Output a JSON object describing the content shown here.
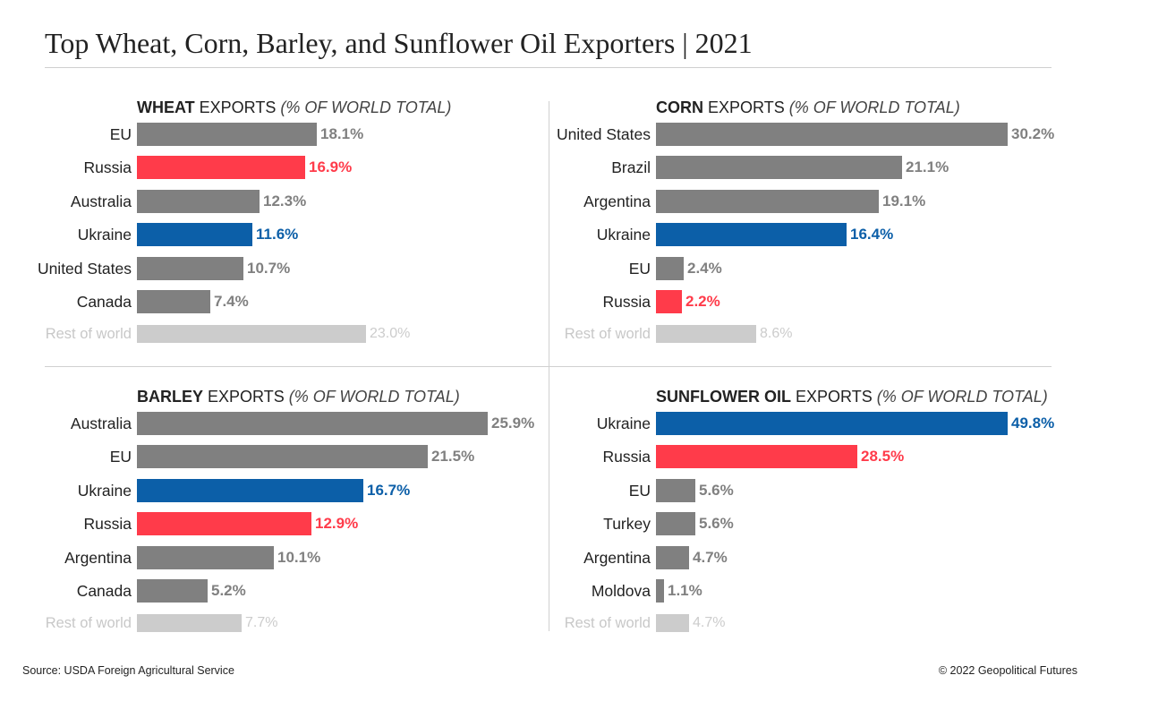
{
  "title": "Top Wheat, Corn, Barley, and Sunflower Oil Exporters | 2021",
  "source": "Source: USDA Foreign Agricultural Service",
  "copyright": "© 2022 Geopolitical Futures",
  "colors": {
    "default": "#808080",
    "russia": "#ff3b4a",
    "ukraine": "#0c5fa8",
    "rest": "#cccccc",
    "default_text": "#808080"
  },
  "chart_data": [
    {
      "type": "bar",
      "orientation": "horizontal",
      "title_bold": "WHEAT",
      "title_rest": " EXPORTS ",
      "title_unit": "(% OF WORLD TOTAL)",
      "categories": [
        "EU",
        "Russia",
        "Australia",
        "Ukraine",
        "United States",
        "Canada",
        "Rest of world"
      ],
      "values": [
        18.1,
        16.9,
        12.3,
        11.6,
        10.7,
        7.4,
        23.0
      ],
      "labels": [
        "18.1%",
        "16.9%",
        "12.3%",
        "11.6%",
        "10.7%",
        "7.4%",
        "23.0%"
      ],
      "highlight": [
        "default",
        "russia",
        "default",
        "ukraine",
        "default",
        "default",
        "rest"
      ]
    },
    {
      "type": "bar",
      "orientation": "horizontal",
      "title_bold": "CORN",
      "title_rest": " EXPORTS ",
      "title_unit": "(% OF WORLD TOTAL)",
      "categories": [
        "United States",
        "Brazil",
        "Argentina",
        "Ukraine",
        "EU",
        "Russia",
        "Rest of world"
      ],
      "values": [
        30.2,
        21.1,
        19.1,
        16.4,
        2.4,
        2.2,
        8.6
      ],
      "labels": [
        "30.2%",
        "21.1%",
        "19.1%",
        "16.4%",
        "2.4%",
        "2.2%",
        "8.6%"
      ],
      "highlight": [
        "default",
        "default",
        "default",
        "ukraine",
        "default",
        "russia",
        "rest"
      ]
    },
    {
      "type": "bar",
      "orientation": "horizontal",
      "title_bold": "BARLEY",
      "title_rest": " EXPORTS ",
      "title_unit": "(% OF WORLD TOTAL)",
      "categories": [
        "Australia",
        "EU",
        "Ukraine",
        "Russia",
        "Argentina",
        "Canada",
        "Rest of world"
      ],
      "values": [
        25.9,
        21.5,
        16.7,
        12.9,
        10.1,
        5.2,
        7.7
      ],
      "labels": [
        "25.9%",
        "21.5%",
        "16.7%",
        "12.9%",
        "10.1%",
        "5.2%",
        "7.7%"
      ],
      "highlight": [
        "default",
        "default",
        "ukraine",
        "russia",
        "default",
        "default",
        "rest"
      ]
    },
    {
      "type": "bar",
      "orientation": "horizontal",
      "title_bold": "SUNFLOWER OIL",
      "title_rest": " EXPORTS ",
      "title_unit": "(% OF WORLD TOTAL)",
      "categories": [
        "Ukraine",
        "Russia",
        "EU",
        "Turkey",
        "Argentina",
        "Moldova",
        "Rest of world"
      ],
      "values": [
        49.8,
        28.5,
        5.6,
        5.6,
        4.7,
        1.1,
        4.7
      ],
      "labels": [
        "49.8%",
        "28.5%",
        "5.6%",
        "5.6%",
        "4.7%",
        "1.1%",
        "4.7%"
      ],
      "highlight": [
        "ukraine",
        "russia",
        "default",
        "default",
        "default",
        "default",
        "rest"
      ]
    }
  ]
}
